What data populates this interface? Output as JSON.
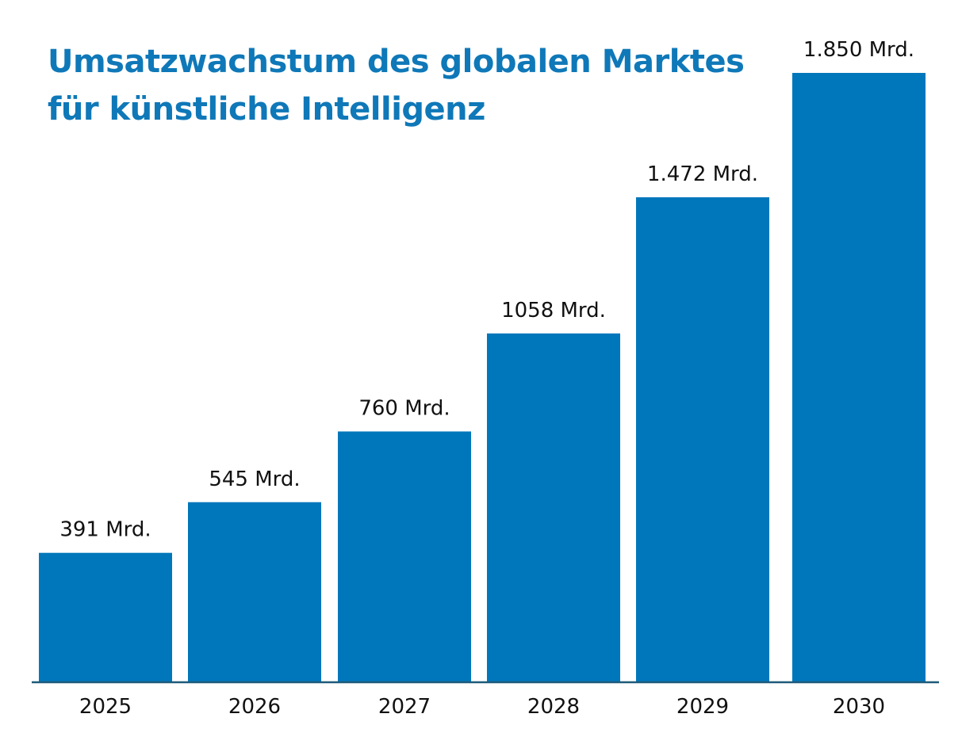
{
  "chart_data": {
    "type": "bar",
    "title": "Umsatzwachstum des globalen Marktes\nfür künstliche Intelligenz",
    "xlabel": "",
    "ylabel": "",
    "unit": "Mrd.",
    "categories": [
      "2025",
      "2026",
      "2027",
      "2028",
      "2029",
      "2030"
    ],
    "values": [
      391,
      545,
      760,
      1058,
      1472,
      1850
    ],
    "data_labels": [
      "391 Mrd.",
      "545 Mrd.",
      "760 Mrd.",
      "1058 Mrd.",
      "1.472 Mrd.",
      "1.850 Mrd."
    ],
    "ylim": [
      0,
      1850
    ],
    "grid": false,
    "legend": "none",
    "bar_color": "#0077bb",
    "title_color": "#0f78b8",
    "axis_color": "#1f5a7a"
  }
}
